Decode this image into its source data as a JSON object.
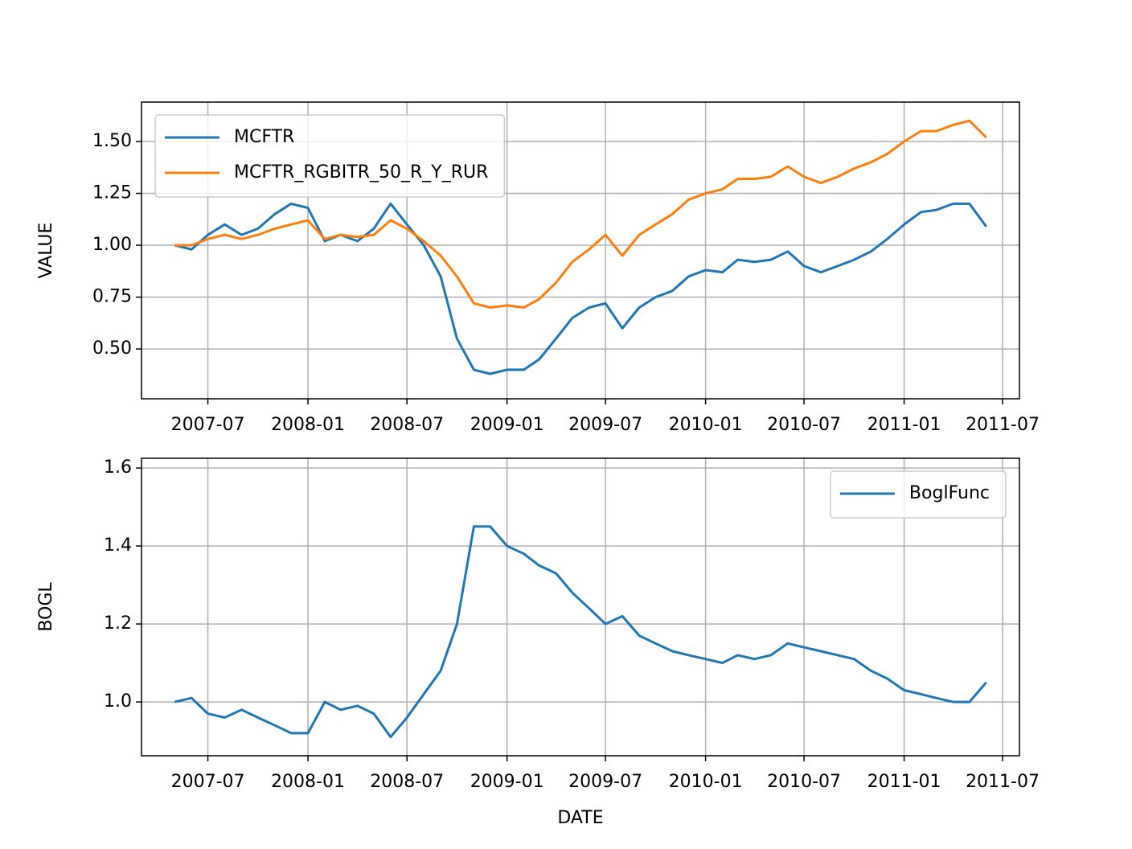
{
  "chart_data": [
    {
      "type": "line",
      "ylabel": "VALUE",
      "x": [
        "2007-05",
        "2007-06",
        "2007-07",
        "2007-08",
        "2007-09",
        "2007-10",
        "2007-11",
        "2007-12",
        "2008-01",
        "2008-02",
        "2008-03",
        "2008-04",
        "2008-05",
        "2008-06",
        "2008-07",
        "2008-08",
        "2008-09",
        "2008-10",
        "2008-11",
        "2008-12",
        "2009-01",
        "2009-02",
        "2009-03",
        "2009-04",
        "2009-05",
        "2009-06",
        "2009-07",
        "2009-08",
        "2009-09",
        "2009-10",
        "2009-11",
        "2009-12",
        "2010-01",
        "2010-02",
        "2010-03",
        "2010-04",
        "2010-05",
        "2010-06",
        "2010-07",
        "2010-08",
        "2010-09",
        "2010-10",
        "2010-11",
        "2010-12",
        "2011-01",
        "2011-02",
        "2011-03",
        "2011-04",
        "2011-05",
        "2011-06"
      ],
      "series": [
        {
          "name": "MCFTR",
          "color": "#1f77b4",
          "values": [
            1.0,
            0.98,
            1.05,
            1.1,
            1.05,
            1.08,
            1.15,
            1.2,
            1.18,
            1.02,
            1.05,
            1.02,
            1.08,
            1.2,
            1.1,
            1.0,
            0.85,
            0.55,
            0.4,
            0.38,
            0.4,
            0.4,
            0.45,
            0.55,
            0.65,
            0.7,
            0.72,
            0.6,
            0.7,
            0.75,
            0.78,
            0.85,
            0.88,
            0.87,
            0.93,
            0.92,
            0.93,
            0.97,
            0.9,
            0.87,
            0.9,
            0.93,
            0.97,
            1.03,
            1.1,
            1.16,
            1.17,
            1.2,
            1.2,
            1.09
          ]
        },
        {
          "name": "MCFTR_RGBITR_50_R_Y_RUR",
          "color": "#ff7f0e",
          "values": [
            1.0,
            1.0,
            1.03,
            1.05,
            1.03,
            1.05,
            1.08,
            1.1,
            1.12,
            1.03,
            1.05,
            1.04,
            1.05,
            1.12,
            1.08,
            1.02,
            0.95,
            0.85,
            0.72,
            0.7,
            0.71,
            0.7,
            0.74,
            0.82,
            0.92,
            0.98,
            1.05,
            0.95,
            1.05,
            1.1,
            1.15,
            1.22,
            1.25,
            1.27,
            1.32,
            1.32,
            1.33,
            1.38,
            1.33,
            1.3,
            1.33,
            1.37,
            1.4,
            1.44,
            1.5,
            1.55,
            1.55,
            1.58,
            1.6,
            1.52
          ]
        }
      ],
      "xlim": [
        "2007-03",
        "2011-08"
      ],
      "xticks": [
        "2007-07",
        "2008-01",
        "2008-07",
        "2009-01",
        "2009-07",
        "2010-01",
        "2010-07",
        "2011-01",
        "2011-07"
      ],
      "ylim": [
        0.26,
        1.69
      ],
      "yticks": [
        {
          "value": 0.5,
          "label": "0.50"
        },
        {
          "value": 0.75,
          "label": "0.75"
        },
        {
          "value": 1.0,
          "label": "1.00"
        },
        {
          "value": 1.25,
          "label": "1.25"
        },
        {
          "value": 1.5,
          "label": "1.50"
        }
      ],
      "grid": true,
      "legend": "upper left"
    },
    {
      "type": "line",
      "ylabel": "BOGL",
      "xlabel": "DATE",
      "x": [
        "2007-05",
        "2007-06",
        "2007-07",
        "2007-08",
        "2007-09",
        "2007-10",
        "2007-11",
        "2007-12",
        "2008-01",
        "2008-02",
        "2008-03",
        "2008-04",
        "2008-05",
        "2008-06",
        "2008-07",
        "2008-08",
        "2008-09",
        "2008-10",
        "2008-11",
        "2008-12",
        "2009-01",
        "2009-02",
        "2009-03",
        "2009-04",
        "2009-05",
        "2009-06",
        "2009-07",
        "2009-08",
        "2009-09",
        "2009-10",
        "2009-11",
        "2009-12",
        "2010-01",
        "2010-02",
        "2010-03",
        "2010-04",
        "2010-05",
        "2010-06",
        "2010-07",
        "2010-08",
        "2010-09",
        "2010-10",
        "2010-11",
        "2010-12",
        "2011-01",
        "2011-02",
        "2011-03",
        "2011-04",
        "2011-05",
        "2011-06"
      ],
      "series": [
        {
          "name": "BoglFunc",
          "color": "#1f77b4",
          "values": [
            1.0,
            1.01,
            0.97,
            0.96,
            0.98,
            0.96,
            0.94,
            0.92,
            0.92,
            1.0,
            0.98,
            0.99,
            0.97,
            0.91,
            0.96,
            1.02,
            1.08,
            1.2,
            1.45,
            1.45,
            1.4,
            1.38,
            1.35,
            1.33,
            1.28,
            1.24,
            1.2,
            1.22,
            1.17,
            1.15,
            1.13,
            1.12,
            1.11,
            1.1,
            1.12,
            1.11,
            1.12,
            1.15,
            1.14,
            1.13,
            1.12,
            1.11,
            1.08,
            1.06,
            1.03,
            1.02,
            1.01,
            1.0,
            1.0,
            1.05
          ]
        }
      ],
      "xlim": [
        "2007-03",
        "2011-08"
      ],
      "xticks": [
        "2007-07",
        "2008-01",
        "2008-07",
        "2009-01",
        "2009-07",
        "2010-01",
        "2010-07",
        "2011-01",
        "2011-07"
      ],
      "ylim": [
        0.862,
        1.625
      ],
      "yticks": [
        {
          "value": 1.0,
          "label": "1.0"
        },
        {
          "value": 1.2,
          "label": "1.2"
        },
        {
          "value": 1.4,
          "label": "1.4"
        },
        {
          "value": 1.6,
          "label": "1.6"
        }
      ],
      "grid": true,
      "legend": "upper right"
    }
  ]
}
